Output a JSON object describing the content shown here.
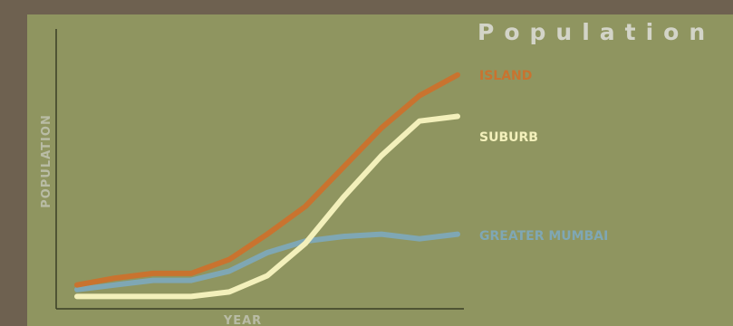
{
  "chart_data": {
    "type": "line",
    "title": "Population",
    "xlabel": "YEAR",
    "ylabel": "POPULATION",
    "x": [
      0,
      1,
      2,
      3,
      4,
      5,
      6,
      7,
      8,
      9,
      10
    ],
    "xlim": [
      0,
      10
    ],
    "ylim": [
      0,
      100
    ],
    "grid": false,
    "legend": "right",
    "series": [
      {
        "name": "ISLAND",
        "color": "#c9732f",
        "values": [
          6,
          9,
          11,
          11,
          17,
          28,
          40,
          57,
          74,
          88,
          97
        ]
      },
      {
        "name": "SUBURB",
        "color": "#f3f0bb",
        "values": [
          1,
          1,
          1,
          1,
          3,
          10,
          24,
          44,
          62,
          77,
          79
        ]
      },
      {
        "name": "GREATER MUMBAI",
        "color": "#7fa7b4",
        "values": [
          4,
          6,
          8,
          8,
          12,
          20,
          25,
          27,
          28,
          26,
          28
        ]
      }
    ]
  }
}
